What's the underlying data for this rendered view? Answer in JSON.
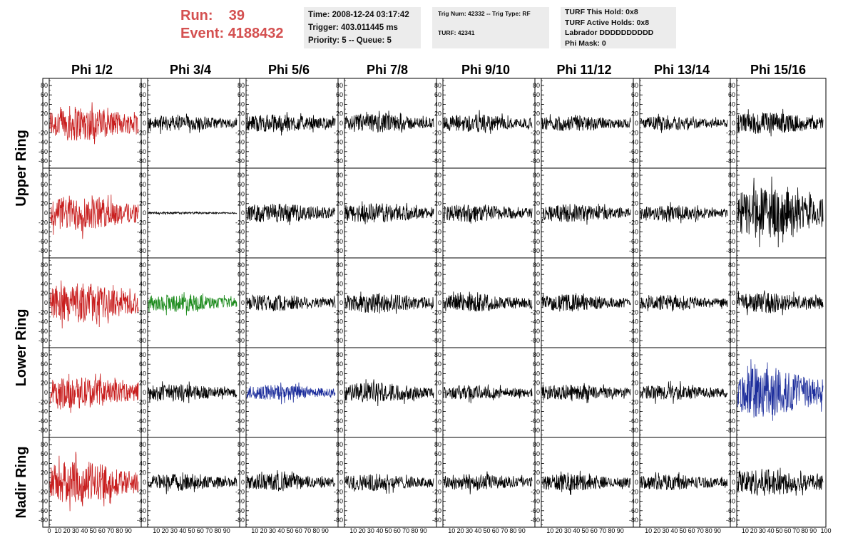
{
  "header": {
    "run_label": "Run:",
    "run_value": "39",
    "event_label": "Event:",
    "event_value": "4188432"
  },
  "info_time": {
    "time": "Time: 2008-12-24 03:17:42",
    "trigger": "Trigger: 403.011445 ms",
    "priority": "Priority: 5 -- Queue: 5"
  },
  "info_trig": {
    "trig": "Trig Num: 42332 -- Trig Type: RF",
    "turf": "TURF: 42341"
  },
  "info_turf": {
    "this_hold": "TURF This Hold: 0x8",
    "active_holds": "TURF Active Holds: 0x8",
    "labrador": "Labrador DDDDDDDDDD",
    "phi_mask": "Phi Mask: 0"
  },
  "chart_data": {
    "type": "line",
    "columns": [
      "Phi 1/2",
      "Phi 3/4",
      "Phi 5/6",
      "Phi 7/8",
      "Phi 9/10",
      "Phi 11/12",
      "Phi 13/14",
      "Phi 15/16"
    ],
    "ring_labels": [
      "Upper Ring",
      "Lower Ring",
      "Nadir Ring"
    ],
    "y_ticks": [
      -80,
      -60,
      -40,
      -20,
      0,
      20,
      40,
      60,
      80
    ],
    "x_ticks": [
      0,
      10,
      20,
      30,
      40,
      50,
      60,
      70,
      80,
      90,
      100
    ],
    "x_ticks_first_panel_labels": [
      "0",
      "10",
      "20",
      "30",
      "40",
      "50",
      "60",
      "70",
      "80",
      "90"
    ],
    "x_ticks_other_panel_labels": [
      "10",
      "20",
      "30",
      "40",
      "50",
      "60",
      "70",
      "80",
      "90"
    ],
    "x_ticks_last_label": "100",
    "ylim": [
      -95,
      95
    ],
    "xlim": [
      0,
      100
    ],
    "colors": {
      "red": "#c81e1e",
      "green": "#1a8a1a",
      "blue": "#1d2e9c",
      "black": "#000000"
    },
    "traces": [
      {
        "row": 0,
        "col": 0,
        "color": "red",
        "amplitude": 32
      },
      {
        "row": 0,
        "col": 1,
        "color": "black",
        "amplitude": 14
      },
      {
        "row": 0,
        "col": 2,
        "color": "black",
        "amplitude": 16
      },
      {
        "row": 0,
        "col": 3,
        "color": "black",
        "amplitude": 17
      },
      {
        "row": 0,
        "col": 4,
        "color": "black",
        "amplitude": 16
      },
      {
        "row": 0,
        "col": 5,
        "color": "black",
        "amplitude": 14
      },
      {
        "row": 0,
        "col": 6,
        "color": "black",
        "amplitude": 13
      },
      {
        "row": 0,
        "col": 7,
        "color": "black",
        "amplitude": 20
      },
      {
        "row": 1,
        "col": 0,
        "color": "red",
        "amplitude": 32
      },
      {
        "row": 1,
        "col": 1,
        "color": "black",
        "amplitude": 2
      },
      {
        "row": 1,
        "col": 2,
        "color": "black",
        "amplitude": 17
      },
      {
        "row": 1,
        "col": 3,
        "color": "black",
        "amplitude": 18
      },
      {
        "row": 1,
        "col": 4,
        "color": "black",
        "amplitude": 16
      },
      {
        "row": 1,
        "col": 5,
        "color": "black",
        "amplitude": 16
      },
      {
        "row": 1,
        "col": 6,
        "color": "black",
        "amplitude": 14
      },
      {
        "row": 1,
        "col": 7,
        "color": "black",
        "amplitude": 45
      },
      {
        "row": 2,
        "col": 0,
        "color": "red",
        "amplitude": 35
      },
      {
        "row": 2,
        "col": 1,
        "color": "green",
        "amplitude": 16
      },
      {
        "row": 2,
        "col": 2,
        "color": "black",
        "amplitude": 15
      },
      {
        "row": 2,
        "col": 3,
        "color": "black",
        "amplitude": 18
      },
      {
        "row": 2,
        "col": 4,
        "color": "black",
        "amplitude": 16
      },
      {
        "row": 2,
        "col": 5,
        "color": "black",
        "amplitude": 15
      },
      {
        "row": 2,
        "col": 6,
        "color": "black",
        "amplitude": 14
      },
      {
        "row": 2,
        "col": 7,
        "color": "black",
        "amplitude": 18
      },
      {
        "row": 3,
        "col": 0,
        "color": "red",
        "amplitude": 28
      },
      {
        "row": 3,
        "col": 1,
        "color": "black",
        "amplitude": 15
      },
      {
        "row": 3,
        "col": 2,
        "color": "blue",
        "amplitude": 14
      },
      {
        "row": 3,
        "col": 3,
        "color": "black",
        "amplitude": 18
      },
      {
        "row": 3,
        "col": 4,
        "color": "black",
        "amplitude": 13
      },
      {
        "row": 3,
        "col": 5,
        "color": "black",
        "amplitude": 14
      },
      {
        "row": 3,
        "col": 6,
        "color": "black",
        "amplitude": 14
      },
      {
        "row": 3,
        "col": 7,
        "color": "blue",
        "amplitude": 45
      },
      {
        "row": 4,
        "col": 0,
        "color": "red",
        "amplitude": 38
      },
      {
        "row": 4,
        "col": 1,
        "color": "black",
        "amplitude": 15
      },
      {
        "row": 4,
        "col": 2,
        "color": "black",
        "amplitude": 16
      },
      {
        "row": 4,
        "col": 3,
        "color": "black",
        "amplitude": 15
      },
      {
        "row": 4,
        "col": 4,
        "color": "black",
        "amplitude": 15
      },
      {
        "row": 4,
        "col": 5,
        "color": "black",
        "amplitude": 15
      },
      {
        "row": 4,
        "col": 6,
        "color": "black",
        "amplitude": 14
      },
      {
        "row": 4,
        "col": 7,
        "color": "black",
        "amplitude": 24
      }
    ]
  }
}
